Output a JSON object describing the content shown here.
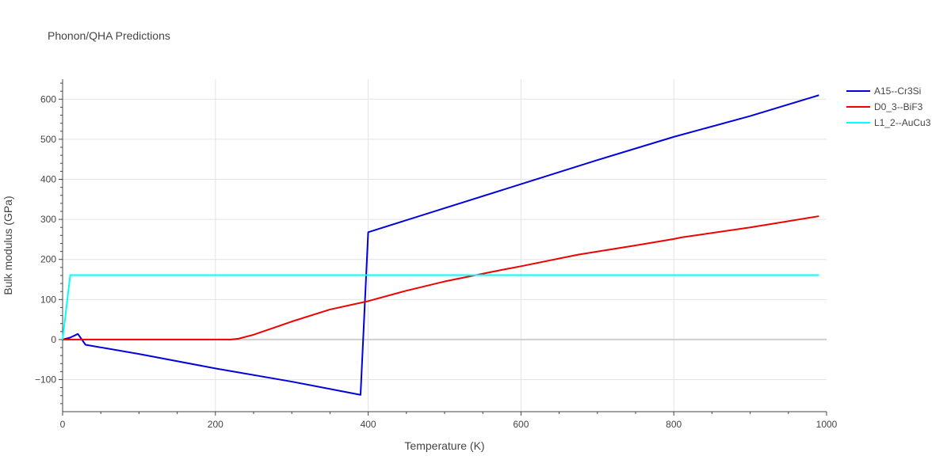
{
  "chart_data": {
    "type": "line",
    "title": "Phonon/QHA Predictions",
    "xlabel": "Temperature (K)",
    "ylabel": "Bulk modulus (GPa)",
    "xlim": [
      0,
      1000
    ],
    "ylim": [
      -180,
      650
    ],
    "x_ticks": [
      0,
      200,
      400,
      600,
      800,
      1000
    ],
    "x_tick_labels": [
      "0",
      "200",
      "400",
      "600",
      "800",
      "1000"
    ],
    "y_ticks": [
      -100,
      0,
      100,
      200,
      300,
      400,
      500,
      600
    ],
    "y_tick_labels": [
      "−100",
      "0",
      "100",
      "200",
      "300",
      "400",
      "500",
      "600"
    ],
    "grid": true,
    "legend_position": "top-right, outside plot",
    "series": [
      {
        "name": "A15--Cr3Si",
        "color": "#0000dd",
        "points": [
          [
            0,
            0
          ],
          [
            10,
            5
          ],
          [
            20,
            14
          ],
          [
            30,
            -13
          ],
          [
            100,
            -36
          ],
          [
            200,
            -72
          ],
          [
            300,
            -105
          ],
          [
            390,
            -138
          ],
          [
            400,
            268
          ],
          [
            500,
            328
          ],
          [
            600,
            388
          ],
          [
            700,
            448
          ],
          [
            800,
            506
          ],
          [
            900,
            558
          ],
          [
            990,
            610
          ]
        ]
      },
      {
        "name": "D0_3--BiF3",
        "color": "#ee0000",
        "points": [
          [
            0,
            0
          ],
          [
            220,
            0
          ],
          [
            230,
            2
          ],
          [
            250,
            12
          ],
          [
            300,
            45
          ],
          [
            350,
            75
          ],
          [
            400,
            96
          ],
          [
            450,
            122
          ],
          [
            500,
            145
          ],
          [
            575,
            174
          ],
          [
            600,
            183
          ],
          [
            675,
            212
          ],
          [
            750,
            235
          ],
          [
            800,
            251
          ],
          [
            810,
            255
          ],
          [
            900,
            280
          ],
          [
            990,
            308
          ]
        ]
      },
      {
        "name": "L1_2--AuCu3",
        "color": "#00ffff",
        "points": [
          [
            0,
            0
          ],
          [
            10,
            161
          ],
          [
            990,
            161
          ]
        ]
      }
    ]
  }
}
